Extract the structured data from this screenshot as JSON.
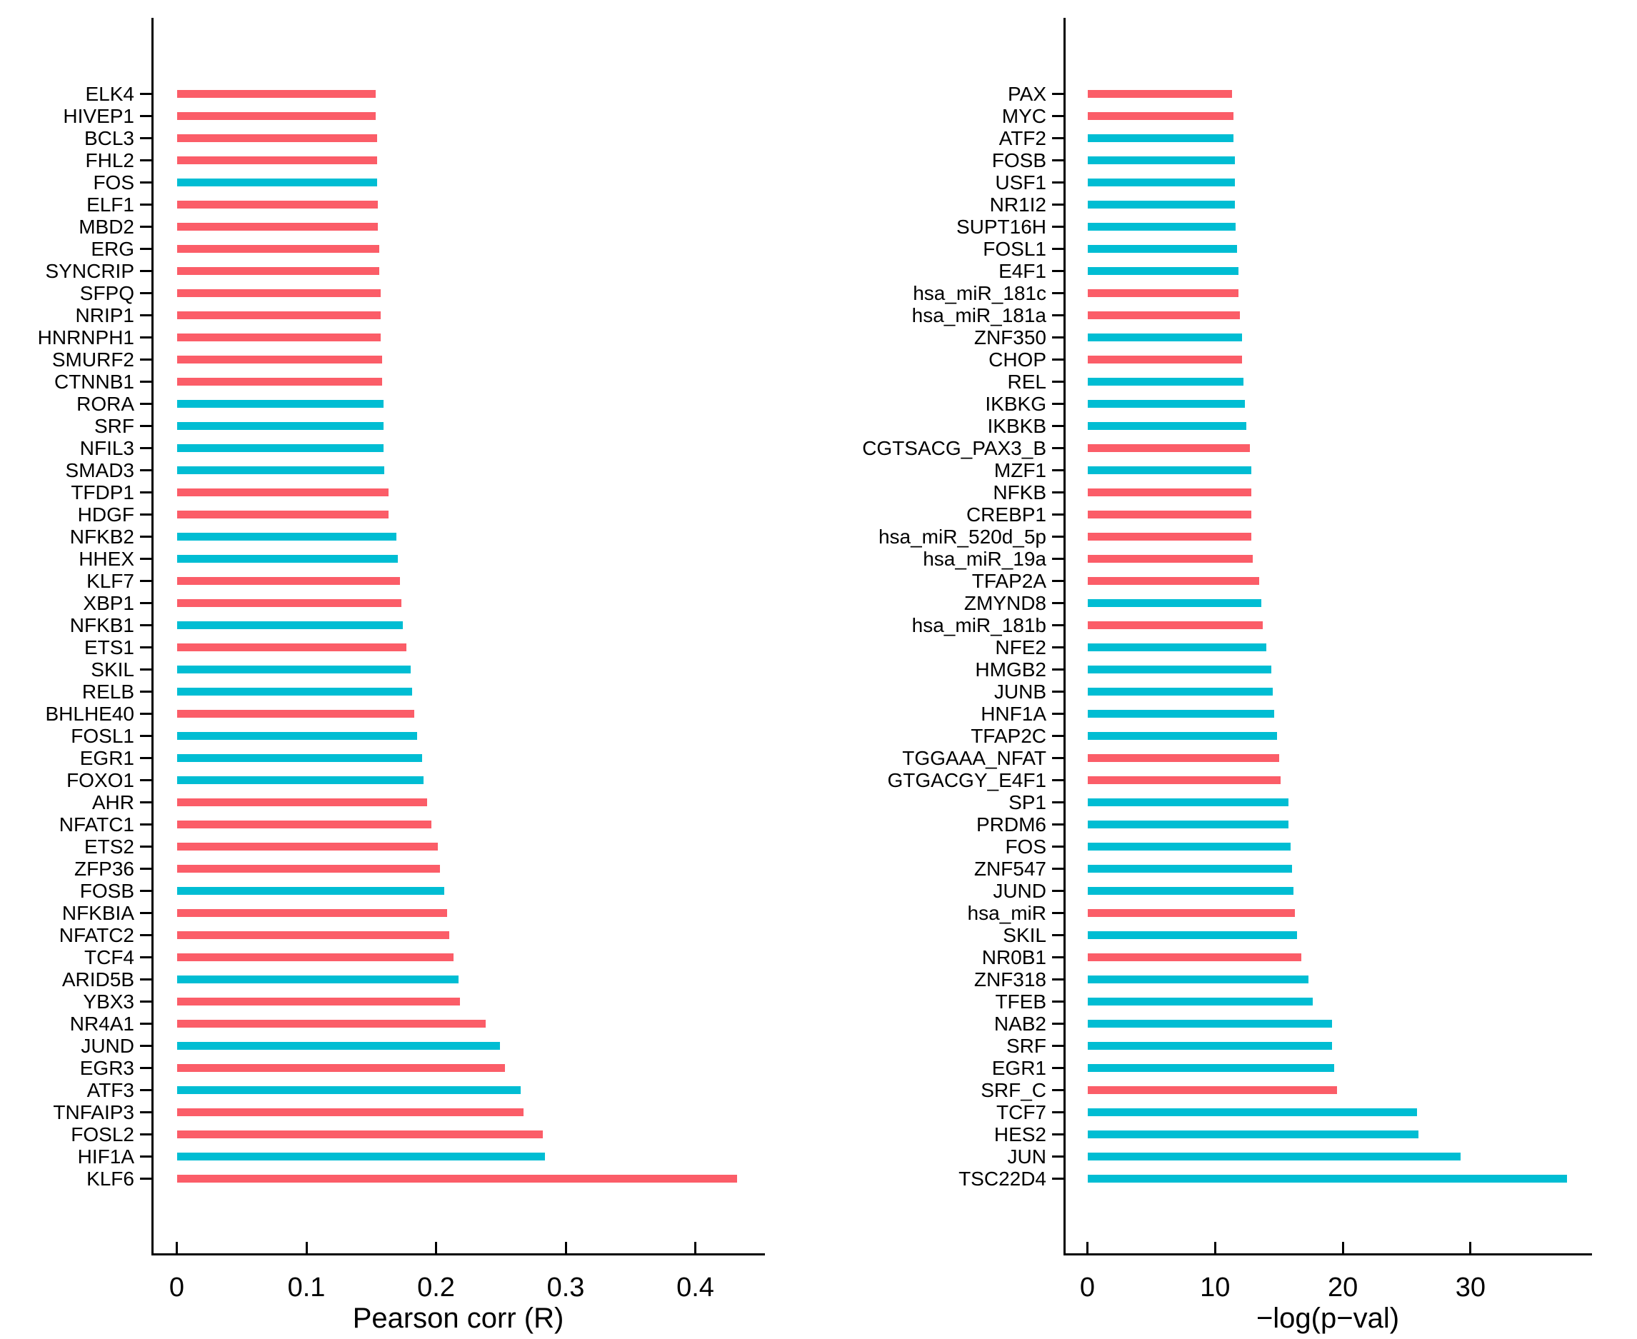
{
  "figure": {
    "background": "#ffffff",
    "bar_colors": {
      "red": "#FB5D68",
      "cyan": "#00BDD3"
    }
  },
  "chart_data": [
    {
      "type": "bar",
      "orientation": "horizontal",
      "title": "",
      "xlabel": "Pearson corr (R)",
      "ylabel": "",
      "xlim": [
        0,
        0.455
      ],
      "grid": false,
      "legend": "none",
      "xtick_labels": [
        "0",
        "0.1",
        "0.2",
        "0.3",
        "0.4"
      ],
      "xtick_values": [
        0,
        0.1,
        0.2,
        0.3,
        0.4
      ],
      "bars": [
        {
          "label": "ELK4",
          "value": 0.153,
          "color": "red"
        },
        {
          "label": "HIVEP1",
          "value": 0.153,
          "color": "red"
        },
        {
          "label": "BCL3",
          "value": 0.154,
          "color": "red"
        },
        {
          "label": "FHL2",
          "value": 0.154,
          "color": "red"
        },
        {
          "label": "FOS",
          "value": 0.154,
          "color": "cyan"
        },
        {
          "label": "ELF1",
          "value": 0.155,
          "color": "red"
        },
        {
          "label": "MBD2",
          "value": 0.155,
          "color": "red"
        },
        {
          "label": "ERG",
          "value": 0.156,
          "color": "red"
        },
        {
          "label": "SYNCRIP",
          "value": 0.156,
          "color": "red"
        },
        {
          "label": "SFPQ",
          "value": 0.157,
          "color": "red"
        },
        {
          "label": "NRIP1",
          "value": 0.157,
          "color": "red"
        },
        {
          "label": "HNRNPH1",
          "value": 0.157,
          "color": "red"
        },
        {
          "label": "SMURF2",
          "value": 0.158,
          "color": "red"
        },
        {
          "label": "CTNNB1",
          "value": 0.158,
          "color": "red"
        },
        {
          "label": "RORA",
          "value": 0.159,
          "color": "cyan"
        },
        {
          "label": "SRF",
          "value": 0.159,
          "color": "cyan"
        },
        {
          "label": "NFIL3",
          "value": 0.159,
          "color": "cyan"
        },
        {
          "label": "SMAD3",
          "value": 0.16,
          "color": "cyan"
        },
        {
          "label": "TFDP1",
          "value": 0.163,
          "color": "red"
        },
        {
          "label": "HDGF",
          "value": 0.163,
          "color": "red"
        },
        {
          "label": "NFKB2",
          "value": 0.169,
          "color": "cyan"
        },
        {
          "label": "HHEX",
          "value": 0.17,
          "color": "cyan"
        },
        {
          "label": "KLF7",
          "value": 0.172,
          "color": "red"
        },
        {
          "label": "XBP1",
          "value": 0.173,
          "color": "red"
        },
        {
          "label": "NFKB1",
          "value": 0.174,
          "color": "cyan"
        },
        {
          "label": "ETS1",
          "value": 0.177,
          "color": "red"
        },
        {
          "label": "SKIL",
          "value": 0.18,
          "color": "cyan"
        },
        {
          "label": "RELB",
          "value": 0.181,
          "color": "cyan"
        },
        {
          "label": "BHLHE40",
          "value": 0.183,
          "color": "red"
        },
        {
          "label": "FOSL1",
          "value": 0.185,
          "color": "cyan"
        },
        {
          "label": "EGR1",
          "value": 0.189,
          "color": "cyan"
        },
        {
          "label": "FOXO1",
          "value": 0.19,
          "color": "cyan"
        },
        {
          "label": "AHR",
          "value": 0.193,
          "color": "red"
        },
        {
          "label": "NFATC1",
          "value": 0.196,
          "color": "red"
        },
        {
          "label": "ETS2",
          "value": 0.201,
          "color": "red"
        },
        {
          "label": "ZFP36",
          "value": 0.203,
          "color": "red"
        },
        {
          "label": "FOSB",
          "value": 0.206,
          "color": "cyan"
        },
        {
          "label": "NFKBIA",
          "value": 0.208,
          "color": "red"
        },
        {
          "label": "NFATC2",
          "value": 0.21,
          "color": "red"
        },
        {
          "label": "TCF4",
          "value": 0.213,
          "color": "red"
        },
        {
          "label": "ARID5B",
          "value": 0.217,
          "color": "cyan"
        },
        {
          "label": "YBX3",
          "value": 0.218,
          "color": "red"
        },
        {
          "label": "NR4A1",
          "value": 0.238,
          "color": "red"
        },
        {
          "label": "JUND",
          "value": 0.249,
          "color": "cyan"
        },
        {
          "label": "EGR3",
          "value": 0.253,
          "color": "red"
        },
        {
          "label": "ATF3",
          "value": 0.265,
          "color": "cyan"
        },
        {
          "label": "TNFAIP3",
          "value": 0.267,
          "color": "red"
        },
        {
          "label": "FOSL2",
          "value": 0.282,
          "color": "red"
        },
        {
          "label": "HIF1A",
          "value": 0.284,
          "color": "cyan"
        },
        {
          "label": "KLF6",
          "value": 0.432,
          "color": "red"
        }
      ]
    },
    {
      "type": "bar",
      "orientation": "horizontal",
      "title": "",
      "xlabel": "−log(p−val)",
      "ylabel": "",
      "xlim": [
        0,
        39.5
      ],
      "grid": false,
      "legend": "none",
      "xtick_labels": [
        "0",
        "10",
        "20",
        "30"
      ],
      "xtick_values": [
        0,
        10,
        20,
        30
      ],
      "bars": [
        {
          "label": "PAX",
          "value": 11.3,
          "color": "red"
        },
        {
          "label": "MYC",
          "value": 11.4,
          "color": "red"
        },
        {
          "label": "ATF2",
          "value": 11.4,
          "color": "cyan"
        },
        {
          "label": "FOSB",
          "value": 11.5,
          "color": "cyan"
        },
        {
          "label": "USF1",
          "value": 11.5,
          "color": "cyan"
        },
        {
          "label": "NR1I2",
          "value": 11.5,
          "color": "cyan"
        },
        {
          "label": "SUPT16H",
          "value": 11.6,
          "color": "cyan"
        },
        {
          "label": "FOSL1",
          "value": 11.7,
          "color": "cyan"
        },
        {
          "label": "E4F1",
          "value": 11.8,
          "color": "cyan"
        },
        {
          "label": "hsa_miR_181c",
          "value": 11.8,
          "color": "red"
        },
        {
          "label": "hsa_miR_181a",
          "value": 11.9,
          "color": "red"
        },
        {
          "label": "ZNF350",
          "value": 12.1,
          "color": "cyan"
        },
        {
          "label": "CHOP",
          "value": 12.1,
          "color": "red"
        },
        {
          "label": "REL",
          "value": 12.2,
          "color": "cyan"
        },
        {
          "label": "IKBKG",
          "value": 12.3,
          "color": "cyan"
        },
        {
          "label": "IKBKB",
          "value": 12.4,
          "color": "cyan"
        },
        {
          "label": "CGTSACG_PAX3_B",
          "value": 12.7,
          "color": "red"
        },
        {
          "label": "MZF1",
          "value": 12.8,
          "color": "cyan"
        },
        {
          "label": "NFKB",
          "value": 12.8,
          "color": "red"
        },
        {
          "label": "CREBP1",
          "value": 12.8,
          "color": "red"
        },
        {
          "label": "hsa_miR_520d_5p",
          "value": 12.8,
          "color": "red"
        },
        {
          "label": "hsa_miR_19a",
          "value": 12.9,
          "color": "red"
        },
        {
          "label": "TFAP2A",
          "value": 13.4,
          "color": "red"
        },
        {
          "label": "ZMYND8",
          "value": 13.6,
          "color": "cyan"
        },
        {
          "label": "hsa_miR_181b",
          "value": 13.7,
          "color": "red"
        },
        {
          "label": "NFE2",
          "value": 14.0,
          "color": "cyan"
        },
        {
          "label": "HMGB2",
          "value": 14.4,
          "color": "cyan"
        },
        {
          "label": "JUNB",
          "value": 14.5,
          "color": "cyan"
        },
        {
          "label": "HNF1A",
          "value": 14.6,
          "color": "cyan"
        },
        {
          "label": "TFAP2C",
          "value": 14.8,
          "color": "cyan"
        },
        {
          "label": "TGGAAA_NFAT",
          "value": 15.0,
          "color": "red"
        },
        {
          "label": "GTGACGY_E4F1",
          "value": 15.1,
          "color": "red"
        },
        {
          "label": "SP1",
          "value": 15.7,
          "color": "cyan"
        },
        {
          "label": "PRDM6",
          "value": 15.7,
          "color": "cyan"
        },
        {
          "label": "FOS",
          "value": 15.9,
          "color": "cyan"
        },
        {
          "label": "ZNF547",
          "value": 16.0,
          "color": "cyan"
        },
        {
          "label": "JUND",
          "value": 16.1,
          "color": "cyan"
        },
        {
          "label": "hsa_miR",
          "value": 16.2,
          "color": "red"
        },
        {
          "label": "SKIL",
          "value": 16.4,
          "color": "cyan"
        },
        {
          "label": "NR0B1",
          "value": 16.7,
          "color": "red"
        },
        {
          "label": "ZNF318",
          "value": 17.3,
          "color": "cyan"
        },
        {
          "label": "TFEB",
          "value": 17.6,
          "color": "cyan"
        },
        {
          "label": "NAB2",
          "value": 19.1,
          "color": "cyan"
        },
        {
          "label": "SRF",
          "value": 19.1,
          "color": "cyan"
        },
        {
          "label": "EGR1",
          "value": 19.3,
          "color": "cyan"
        },
        {
          "label": "SRF_C",
          "value": 19.5,
          "color": "red"
        },
        {
          "label": "TCF7",
          "value": 25.8,
          "color": "cyan"
        },
        {
          "label": "HES2",
          "value": 25.9,
          "color": "cyan"
        },
        {
          "label": "JUN",
          "value": 29.2,
          "color": "cyan"
        },
        {
          "label": "TSC22D4",
          "value": 37.5,
          "color": "cyan"
        }
      ]
    }
  ]
}
